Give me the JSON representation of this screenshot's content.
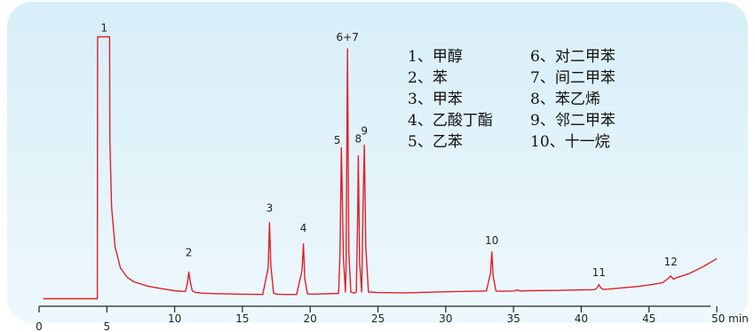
{
  "chart_data": {
    "type": "line",
    "title": "",
    "xlabel": "min",
    "ylabel": "",
    "xlim": [
      0,
      50
    ],
    "xticks": [
      0,
      5,
      10,
      15,
      20,
      25,
      30,
      35,
      40,
      45,
      50
    ],
    "xtick_labels": [
      "0",
      "5",
      "10",
      "15",
      "20",
      "25",
      "30",
      "35",
      "40",
      "45",
      "50 min"
    ],
    "grid": false,
    "series": [
      {
        "color": "#e0202a",
        "x": [
          0.3,
          4.3,
          4.32,
          5.2,
          5.22,
          5.35,
          5.6,
          6.0,
          6.5,
          7.0,
          8.0,
          9.0,
          10.0,
          10.8,
          10.95,
          11.05,
          11.15,
          11.3,
          11.5,
          12.0,
          13.0,
          14.0,
          15.0,
          16.5,
          16.9,
          17.0,
          17.1,
          17.3,
          17.5,
          18.0,
          19.0,
          19.4,
          19.5,
          19.6,
          19.8,
          20.0,
          21.0,
          22.1,
          22.2,
          22.3,
          22.45,
          22.6,
          22.65,
          22.75,
          22.85,
          23.0,
          23.25,
          23.4,
          23.5,
          23.55,
          23.65,
          23.8,
          23.9,
          24.0,
          24.1,
          24.3,
          25.0,
          27.0,
          30.0,
          33.0,
          33.3,
          33.4,
          33.5,
          33.7,
          34.0,
          35.0,
          35.3,
          35.5,
          36.0,
          38.0,
          40.0,
          41.0,
          41.2,
          41.3,
          41.4,
          41.6,
          42.0,
          44.0,
          45.0,
          46.0,
          46.4,
          46.6,
          46.8,
          47.0,
          48.0,
          49.0,
          50.0
        ],
        "y": [
          0.5,
          0.5,
          98.5,
          98.5,
          60.0,
          35.0,
          20.0,
          12.0,
          8.5,
          6.8,
          5.2,
          4.3,
          3.5,
          3.2,
          6.5,
          10.5,
          7.0,
          3.5,
          2.9,
          2.6,
          2.4,
          2.3,
          2.2,
          2.1,
          12.0,
          29.0,
          13.0,
          2.6,
          2.2,
          2.1,
          2.1,
          11.0,
          21.0,
          8.0,
          2.4,
          2.2,
          2.3,
          2.5,
          18.0,
          57.0,
          16.0,
          3.0,
          12.0,
          94.0,
          18.0,
          3.0,
          2.6,
          3.0,
          30.0,
          54.0,
          14.0,
          3.0,
          35.0,
          58.0,
          20.0,
          3.0,
          2.8,
          2.7,
          3.1,
          3.4,
          10.0,
          18.0,
          9.0,
          3.4,
          3.3,
          3.4,
          3.8,
          3.4,
          3.5,
          3.6,
          3.8,
          3.9,
          4.8,
          5.8,
          4.8,
          4.0,
          4.1,
          5.0,
          5.6,
          6.5,
          8.0,
          9.0,
          7.8,
          8.3,
          10.0,
          12.5,
          15.5
        ]
      }
    ],
    "peak_labels": [
      {
        "text": "1",
        "x": 4.8,
        "y": 100.5
      },
      {
        "text": "2",
        "x": 11.05,
        "y": 16.5
      },
      {
        "text": "3",
        "x": 17.0,
        "y": 33.0
      },
      {
        "text": "4",
        "x": 19.5,
        "y": 25.5
      },
      {
        "text": "5",
        "x": 22.0,
        "y": 58.5
      },
      {
        "text": "6+7",
        "x": 22.75,
        "y": 97.0
      },
      {
        "text": "8",
        "x": 23.55,
        "y": 59.0
      },
      {
        "text": "9",
        "x": 24.0,
        "y": 62.0
      },
      {
        "text": "10",
        "x": 33.4,
        "y": 21.0
      },
      {
        "text": "11",
        "x": 41.3,
        "y": 9.0
      },
      {
        "text": "12",
        "x": 46.6,
        "y": 13.0
      }
    ],
    "legend": {
      "column1": [
        "1、甲醇",
        "2、苯",
        "3、甲苯",
        "4、乙酸丁酯",
        "5、乙苯"
      ],
      "column2": [
        "6、对二甲苯",
        "7、间二甲苯",
        "8、苯乙烯",
        "9、邻二甲苯",
        "10、十一烷"
      ]
    },
    "legend_placement": "top-right"
  }
}
